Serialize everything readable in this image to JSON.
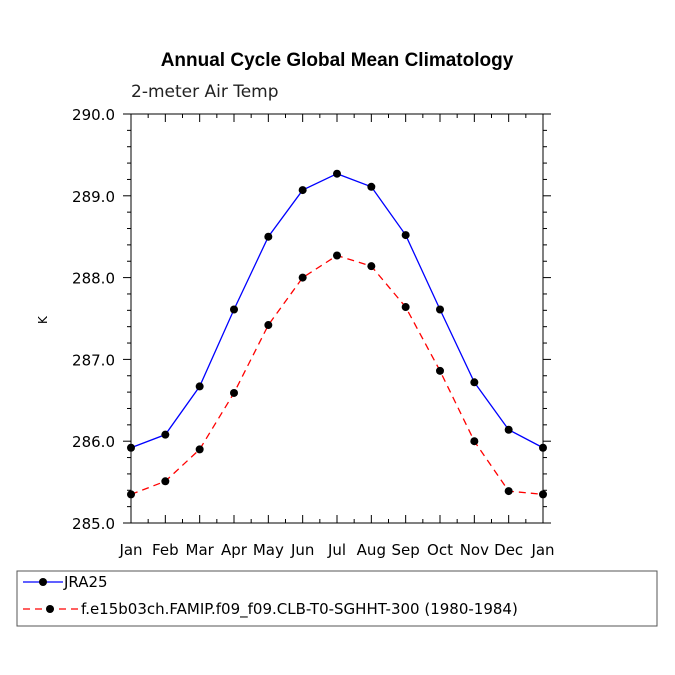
{
  "chart_data": {
    "type": "line",
    "title": "Annual Cycle Global Mean Climatology",
    "subtitle": "2-meter Air Temp",
    "xlabel": "",
    "ylabel": "K",
    "categories": [
      "Jan",
      "Feb",
      "Mar",
      "Apr",
      "May",
      "Jun",
      "Jul",
      "Aug",
      "Sep",
      "Oct",
      "Nov",
      "Dec",
      "Jan"
    ],
    "ylim": [
      285.0,
      290.0
    ],
    "yticks": [
      285.0,
      286.0,
      287.0,
      288.0,
      289.0,
      290.0
    ],
    "ytick_labels": [
      "285.0",
      "286.0",
      "287.0",
      "288.0",
      "289.0",
      "290.0"
    ],
    "series": [
      {
        "name": "JRA25",
        "color": "#0000ff",
        "dash": "solid",
        "values": [
          285.92,
          286.08,
          286.67,
          287.61,
          288.5,
          289.07,
          289.27,
          289.11,
          288.52,
          287.61,
          286.72,
          286.14,
          285.92
        ]
      },
      {
        "name": "f.e15b03ch.FAMIP.f09_f09.CLB-T0-SGHHT-300 (1980-1984)",
        "color": "#ff0000",
        "dash": "dashed",
        "values": [
          285.35,
          285.51,
          285.9,
          286.59,
          287.42,
          288.0,
          288.27,
          288.14,
          287.64,
          286.86,
          286.0,
          285.39,
          285.35
        ]
      }
    ],
    "legend_position": "bottom"
  }
}
